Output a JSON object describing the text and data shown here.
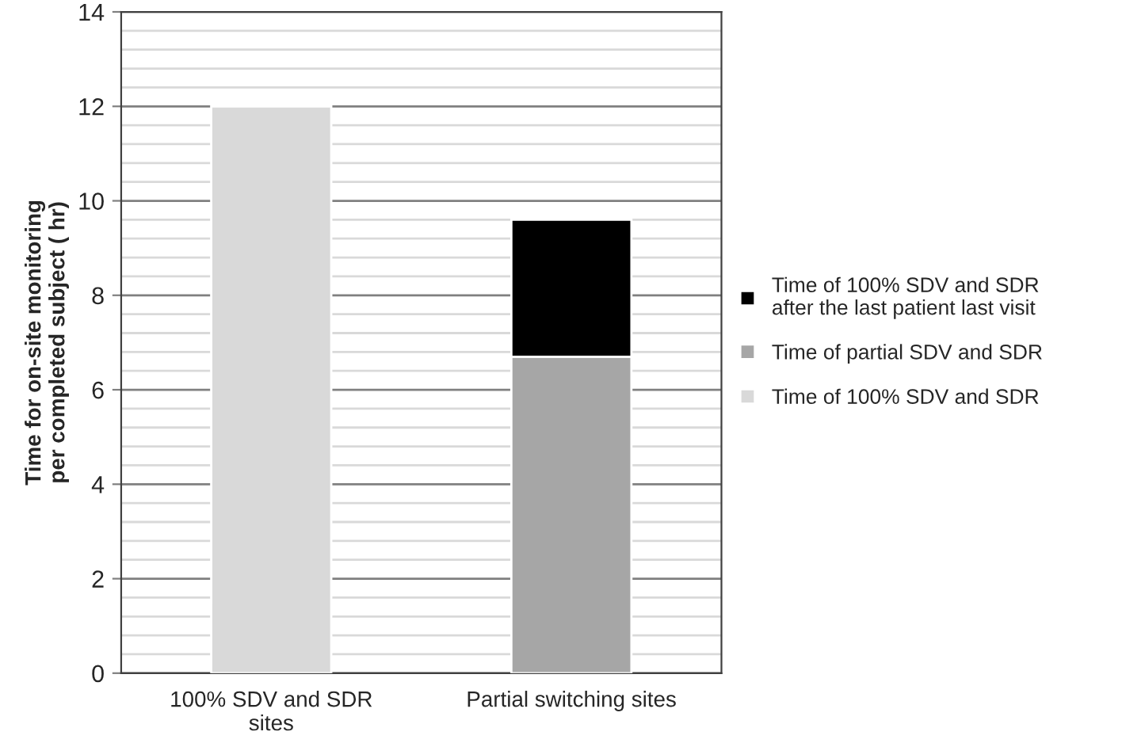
{
  "chart_data": {
    "type": "bar",
    "stacked": true,
    "ylabel": "Time for on-site monitoring\nper completed subject ( hr)",
    "categories": [
      "100% SDV and SDR\nsites",
      "Partial switching sites"
    ],
    "series": [
      {
        "name": "Time of 100% SDV and SDR",
        "color": "#d9d9d9",
        "values": [
          12,
          null
        ]
      },
      {
        "name": "Time of partial SDV and SDR",
        "color": "#a6a6a6",
        "values": [
          null,
          6.7
        ]
      },
      {
        "name": "Time of 100% SDV and SDR\nafter the last patient last visit",
        "color": "#000000",
        "values": [
          null,
          2.9
        ]
      }
    ],
    "ylim": [
      0,
      14
    ],
    "yticks": [
      0,
      {
        "value": 0.4,
        "label": null
      },
      {
        "value": 0.8,
        "label": null
      },
      {
        "value": 1.2,
        "label": null
      },
      {
        "value": 1.6,
        "label": null
      },
      2,
      {
        "value": 2.4,
        "label": null
      },
      {
        "value": 2.8,
        "label": null
      },
      {
        "value": 3.2,
        "label": null
      },
      {
        "value": 3.6,
        "label": null
      },
      4,
      {
        "value": 4.4,
        "label": null
      },
      {
        "value": 4.8,
        "label": null
      },
      {
        "value": 5.2,
        "label": null
      },
      {
        "value": 5.6,
        "label": null
      },
      6,
      {
        "value": 6.4,
        "label": null
      },
      {
        "value": 6.8,
        "label": null
      },
      {
        "value": 7.2,
        "label": null
      },
      {
        "value": 7.6,
        "label": null
      },
      8,
      {
        "value": 8.4,
        "label": null
      },
      {
        "value": 8.8,
        "label": null
      },
      {
        "value": 9.2,
        "label": null
      },
      {
        "value": 9.6,
        "label": null
      },
      10,
      {
        "value": 10.4,
        "label": null
      },
      {
        "value": 10.8,
        "label": null
      },
      {
        "value": 11.2,
        "label": null
      },
      {
        "value": 11.6,
        "label": null
      },
      12,
      {
        "value": 12.4,
        "label": null
      },
      {
        "value": 12.8,
        "label": null
      },
      {
        "value": 13.2,
        "label": null
      },
      {
        "value": 13.6,
        "label": null
      },
      14
    ],
    "grid": "y",
    "legend": "right"
  }
}
